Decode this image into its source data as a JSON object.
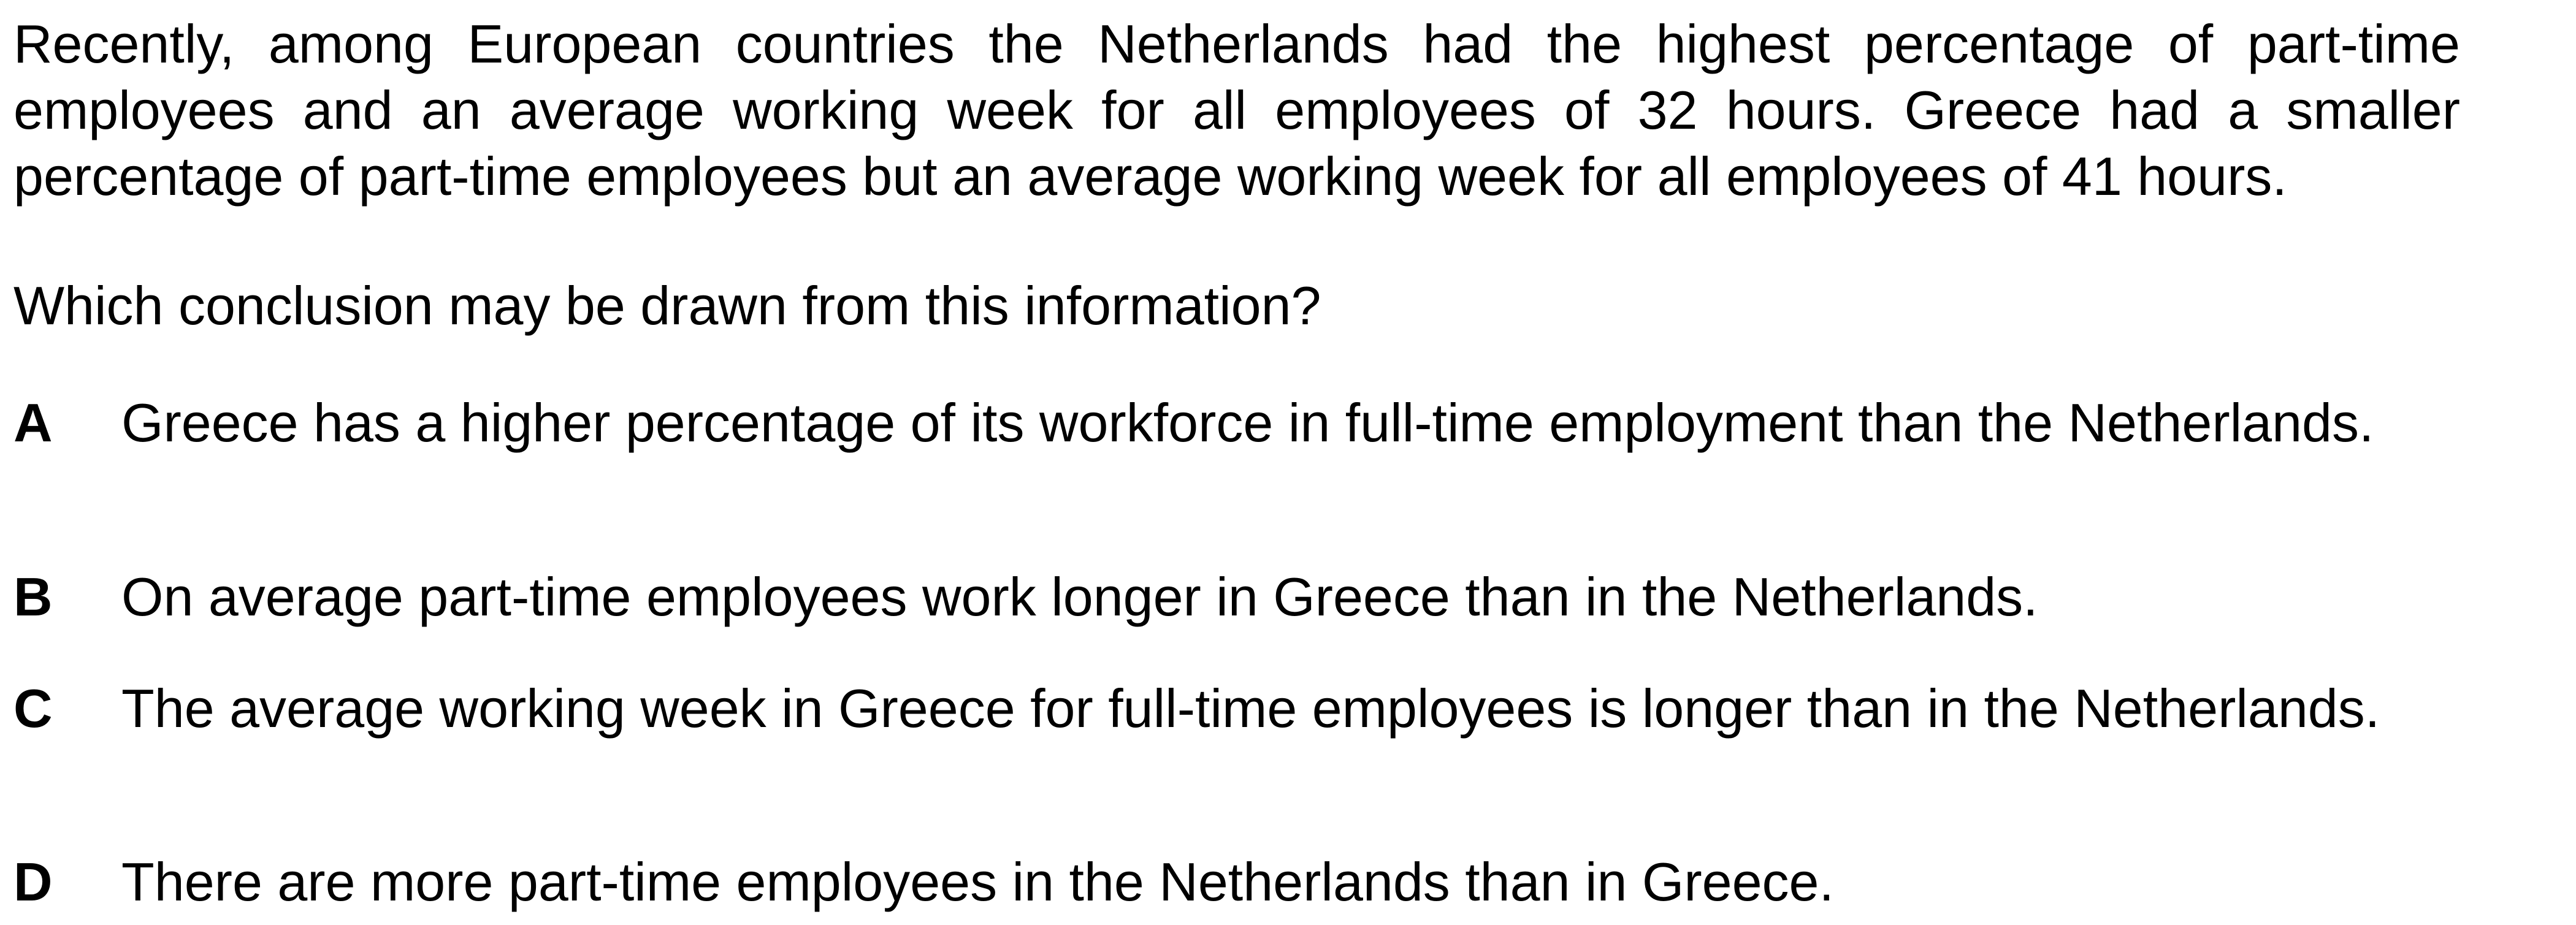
{
  "stem": "Recently, among European countries the Netherlands had the highest percentage of part-time employees and an average working week for all employees of 32 hours. Greece had a smaller percentage of part-time employees but an average working week for all employees of 41 hours.",
  "question": "Which conclusion may be drawn from this information?",
  "options": [
    {
      "letter": "A",
      "text": "Greece has a higher percentage of its workforce in full-time employment than the Netherlands."
    },
    {
      "letter": "B",
      "text": "On average part-time employees work longer in Greece than in the Netherlands."
    },
    {
      "letter": "C",
      "text": "The average working week in Greece for full-time employees is longer than in the Netherlands."
    },
    {
      "letter": "D",
      "text": "There are more part-time employees in the Netherlands than in Greece."
    }
  ]
}
